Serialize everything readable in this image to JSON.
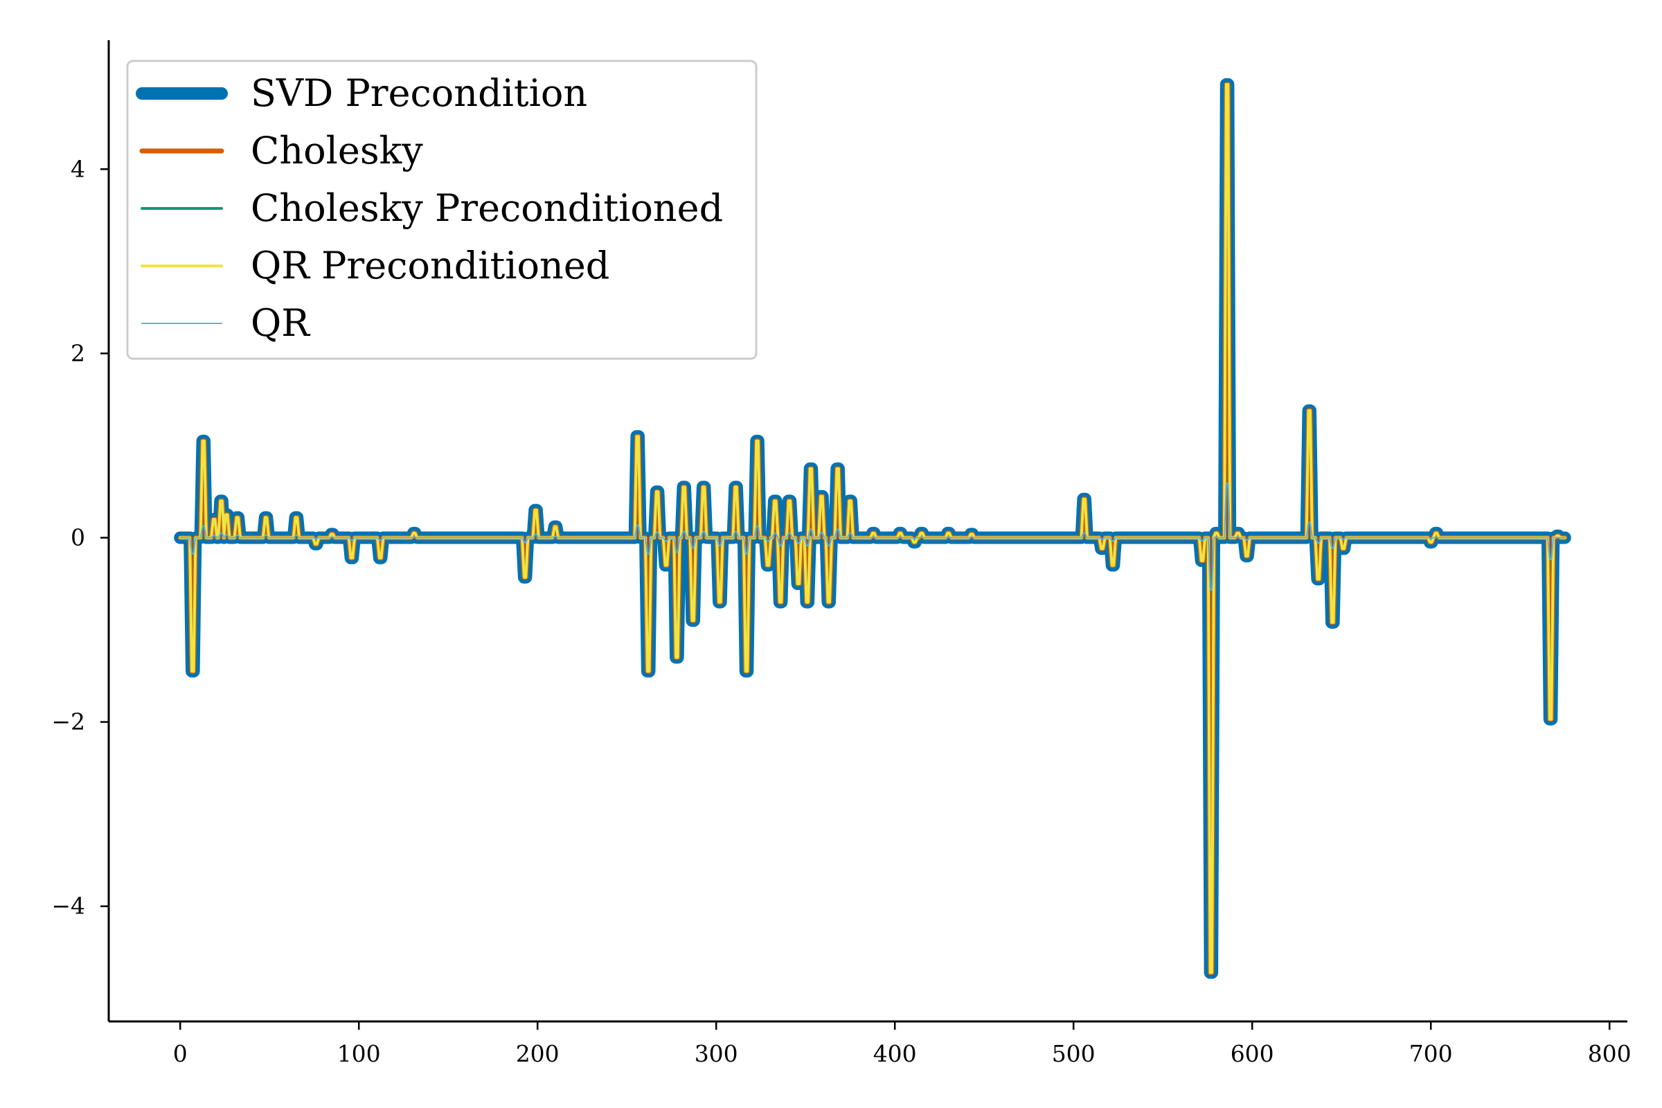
{
  "chart_data": {
    "type": "line",
    "title": "",
    "xlabel": "",
    "ylabel": "",
    "xlim": [
      -40,
      810
    ],
    "ylim": [
      -5.25,
      5.4
    ],
    "xticks": [
      0,
      100,
      200,
      300,
      400,
      500,
      600,
      700,
      800
    ],
    "xtick_labels": [
      "0",
      "100",
      "200",
      "300",
      "400",
      "500",
      "600",
      "700",
      "800"
    ],
    "yticks": [
      -4,
      -2,
      0,
      2,
      4
    ],
    "ytick_labels": [
      "−4",
      "−2",
      "0",
      "2",
      "4"
    ],
    "grid": false,
    "legend_position": "upper-left",
    "spikes": [
      [
        7,
        -1.45
      ],
      [
        13,
        1.05
      ],
      [
        19,
        0.2
      ],
      [
        23,
        0.4
      ],
      [
        26,
        0.25
      ],
      [
        32,
        0.22
      ],
      [
        48,
        0.22
      ],
      [
        65,
        0.22
      ],
      [
        76,
        -0.07
      ],
      [
        85,
        0.04
      ],
      [
        96,
        -0.22
      ],
      [
        112,
        -0.22
      ],
      [
        131,
        0.05
      ],
      [
        193,
        -0.43
      ],
      [
        199,
        0.3
      ],
      [
        210,
        0.12
      ],
      [
        256,
        1.1
      ],
      [
        262,
        -1.45
      ],
      [
        267,
        0.5
      ],
      [
        272,
        -0.3
      ],
      [
        278,
        -1.3
      ],
      [
        282,
        0.55
      ],
      [
        287,
        -0.9
      ],
      [
        293,
        0.55
      ],
      [
        302,
        -0.7
      ],
      [
        311,
        0.55
      ],
      [
        317,
        -1.45
      ],
      [
        323,
        1.05
      ],
      [
        329,
        -0.3
      ],
      [
        333,
        0.4
      ],
      [
        336,
        -0.7
      ],
      [
        341,
        0.4
      ],
      [
        346,
        -0.5
      ],
      [
        351,
        -0.7
      ],
      [
        353,
        0.75
      ],
      [
        359,
        0.45
      ],
      [
        363,
        -0.7
      ],
      [
        368,
        0.75
      ],
      [
        375,
        0.4
      ],
      [
        388,
        0.05
      ],
      [
        403,
        0.05
      ],
      [
        411,
        -0.05
      ],
      [
        415,
        0.05
      ],
      [
        430,
        0.05
      ],
      [
        443,
        0.04
      ],
      [
        506,
        0.42
      ],
      [
        516,
        -0.12
      ],
      [
        522,
        -0.3
      ],
      [
        572,
        -0.25
      ],
      [
        577,
        -4.72
      ],
      [
        580,
        0.05
      ],
      [
        586,
        4.92
      ],
      [
        592,
        0.05
      ],
      [
        597,
        -0.2
      ],
      [
        632,
        1.38
      ],
      [
        637,
        -0.45
      ],
      [
        645,
        -0.92
      ],
      [
        651,
        -0.12
      ],
      [
        700,
        -0.05
      ],
      [
        703,
        0.05
      ],
      [
        767,
        -1.97
      ],
      [
        771,
        0.02
      ]
    ],
    "series": [
      {
        "name": "SVD Precondition",
        "color": "#0072B2",
        "width": 18
      },
      {
        "name": "Cholesky",
        "color": "#D55E00",
        "width": 7
      },
      {
        "name": "Cholesky Preconditioned",
        "color": "#009E73",
        "width": 4
      },
      {
        "name": "QR Preconditioned",
        "color": "#F0E442",
        "width": 4
      },
      {
        "name": "QR",
        "color": "#56B4E9",
        "width": 2
      }
    ]
  }
}
